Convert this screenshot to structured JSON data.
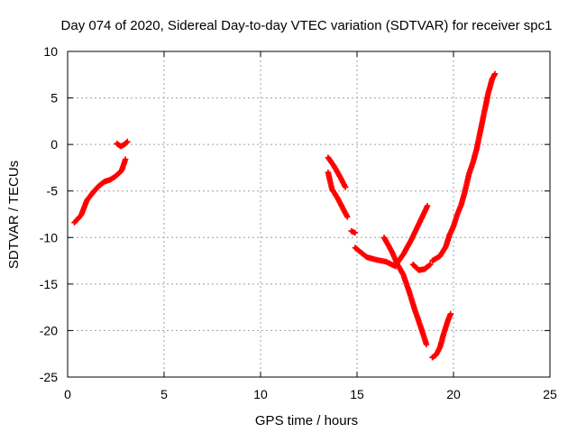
{
  "chart_data": {
    "type": "scatter",
    "title": "Day 074 of 2020, Sidereal Day-to-day VTEC variation (SDTVAR) for receiver spc1",
    "xlabel": "GPS time / hours",
    "ylabel": "SDTVAR / TECUs",
    "xlim": [
      0,
      25
    ],
    "ylim": [
      -25,
      10
    ],
    "x_ticks": [
      0,
      5,
      10,
      15,
      20,
      25
    ],
    "x_tick_labels": [
      "0",
      "5",
      "10",
      "15",
      "20",
      "25"
    ],
    "y_ticks": [
      10,
      5,
      0,
      -5,
      -10,
      -15,
      -20,
      -25
    ],
    "y_tick_labels": [
      "10",
      "5",
      "0",
      "-5",
      "-10",
      "-15",
      "-20",
      "-25"
    ],
    "grid": true,
    "marker": "plus",
    "colors": {
      "series": "#ff0000",
      "axis": "#000000",
      "grid": "#a0a0a0"
    },
    "series": [
      {
        "segments": [
          [
            [
              0.35,
              -8.4
            ],
            [
              0.7,
              -7.6
            ],
            [
              1.0,
              -6.0
            ],
            [
              1.3,
              -5.2
            ],
            [
              1.6,
              -4.5
            ],
            [
              1.9,
              -4.0
            ],
            [
              2.2,
              -3.8
            ],
            [
              2.5,
              -3.4
            ],
            [
              2.8,
              -2.8
            ],
            [
              3.0,
              -1.6
            ]
          ],
          [
            [
              2.55,
              0.1
            ],
            [
              2.75,
              -0.2
            ],
            [
              2.95,
              0.0
            ],
            [
              3.1,
              0.3
            ]
          ],
          [
            [
              13.5,
              -1.4
            ],
            [
              13.8,
              -2.3
            ],
            [
              14.1,
              -3.4
            ],
            [
              14.4,
              -4.6
            ]
          ],
          [
            [
              13.5,
              -3.0
            ],
            [
              13.7,
              -4.8
            ],
            [
              14.0,
              -5.8
            ],
            [
              14.3,
              -7.0
            ],
            [
              14.5,
              -7.8
            ]
          ],
          [
            [
              14.7,
              -9.3
            ],
            [
              14.9,
              -9.5
            ]
          ],
          [
            [
              14.9,
              -11.1
            ],
            [
              15.5,
              -12.1
            ],
            [
              16.0,
              -12.4
            ],
            [
              16.5,
              -12.6
            ],
            [
              17.0,
              -13.1
            ]
          ],
          [
            [
              16.4,
              -10.0
            ],
            [
              16.8,
              -11.5
            ],
            [
              17.1,
              -12.9
            ],
            [
              17.4,
              -14.0
            ],
            [
              17.7,
              -15.8
            ],
            [
              18.0,
              -17.8
            ],
            [
              18.3,
              -19.6
            ],
            [
              18.6,
              -21.5
            ]
          ],
          [
            [
              17.0,
              -13.0
            ],
            [
              17.4,
              -11.8
            ],
            [
              17.8,
              -10.3
            ],
            [
              18.1,
              -9.0
            ],
            [
              18.4,
              -7.7
            ],
            [
              18.65,
              -6.6
            ]
          ],
          [
            [
              17.9,
              -12.9
            ],
            [
              18.2,
              -13.5
            ],
            [
              18.5,
              -13.4
            ],
            [
              18.8,
              -12.9
            ]
          ],
          [
            [
              18.9,
              -12.5
            ],
            [
              19.3,
              -12.0
            ],
            [
              19.6,
              -11.0
            ],
            [
              19.8,
              -9.7
            ],
            [
              20.0,
              -8.8
            ],
            [
              20.2,
              -7.5
            ],
            [
              20.4,
              -6.5
            ],
            [
              20.6,
              -5.0
            ],
            [
              20.8,
              -3.2
            ],
            [
              21.0,
              -2.0
            ],
            [
              21.2,
              -0.5
            ],
            [
              21.4,
              1.5
            ],
            [
              21.6,
              3.5
            ],
            [
              21.8,
              5.5
            ],
            [
              22.0,
              7.0
            ],
            [
              22.15,
              7.6
            ]
          ],
          [
            [
              18.9,
              -22.9
            ],
            [
              19.1,
              -22.6
            ],
            [
              19.3,
              -21.8
            ],
            [
              19.5,
              -20.3
            ],
            [
              19.7,
              -19.0
            ],
            [
              19.85,
              -18.2
            ]
          ]
        ]
      }
    ]
  }
}
